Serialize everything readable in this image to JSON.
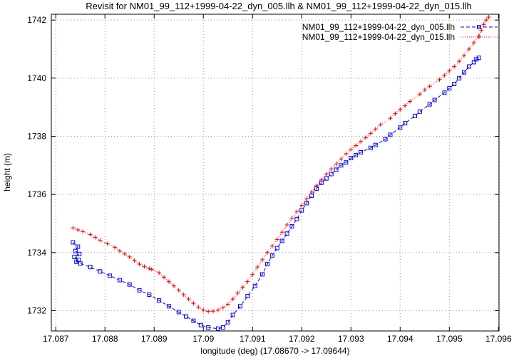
{
  "page": {
    "background": "#ffffff"
  },
  "chart_data": {
    "type": "line",
    "title": "Revisit for NM01_99_112+1999-04-22_dyn_005.llh & NM01_99_112+1999-04-22_dyn_015.llh",
    "xlabel": "longitude (deg) (17.08670 -> 17.09644)",
    "ylabel": "height (m)",
    "xlim": [
      17.08691,
      17.09601
    ],
    "ylim": [
      1731.3,
      1742.2
    ],
    "grid": true,
    "legend_position": "top-right-inside",
    "x_ticks": [
      {
        "value": 17.087,
        "label": "17.087"
      },
      {
        "value": 17.088,
        "label": "17.088"
      },
      {
        "value": 17.089,
        "label": "17.089"
      },
      {
        "value": 17.09,
        "label": "17.09"
      },
      {
        "value": 17.091,
        "label": "17.091"
      },
      {
        "value": 17.092,
        "label": "17.092"
      },
      {
        "value": 17.093,
        "label": "17.093"
      },
      {
        "value": 17.094,
        "label": "17.094"
      },
      {
        "value": 17.095,
        "label": "17.095"
      },
      {
        "value": 17.096,
        "label": "17.096"
      }
    ],
    "y_ticks": [
      {
        "value": 1732,
        "label": "1732"
      },
      {
        "value": 1734,
        "label": "1734"
      },
      {
        "value": 1736,
        "label": "1736"
      },
      {
        "value": 1738,
        "label": "1738"
      },
      {
        "value": 1740,
        "label": "1740"
      },
      {
        "value": 1742,
        "label": "1742"
      }
    ],
    "series": [
      {
        "name": "NM01_99_112+1999-04-22_dyn_005.llh",
        "color": "#0000ff",
        "marker": "open-square",
        "line": "dashed",
        "points": [
          [
            17.08735,
            1734.35
          ],
          [
            17.08745,
            1734.2
          ],
          [
            17.0874,
            1734.05
          ],
          [
            17.08748,
            1733.95
          ],
          [
            17.08738,
            1733.85
          ],
          [
            17.08746,
            1733.75
          ],
          [
            17.08742,
            1733.68
          ],
          [
            17.0875,
            1733.62
          ],
          [
            17.0877,
            1733.5
          ],
          [
            17.0879,
            1733.35
          ],
          [
            17.0881,
            1733.2
          ],
          [
            17.0883,
            1733.05
          ],
          [
            17.0885,
            1732.9
          ],
          [
            17.0887,
            1732.7
          ],
          [
            17.0889,
            1732.55
          ],
          [
            17.0891,
            1732.35
          ],
          [
            17.0893,
            1732.15
          ],
          [
            17.0895,
            1731.95
          ],
          [
            17.08965,
            1731.8
          ],
          [
            17.0898,
            1731.65
          ],
          [
            17.08995,
            1731.5
          ],
          [
            17.0901,
            1731.42
          ],
          [
            17.0903,
            1731.38
          ],
          [
            17.0904,
            1731.42
          ],
          [
            17.0905,
            1731.6
          ],
          [
            17.0906,
            1731.85
          ],
          [
            17.09075,
            1732.15
          ],
          [
            17.0909,
            1732.5
          ],
          [
            17.09105,
            1732.85
          ],
          [
            17.0912,
            1733.25
          ],
          [
            17.0913,
            1733.6
          ],
          [
            17.0914,
            1733.9
          ],
          [
            17.0915,
            1734.15
          ],
          [
            17.0916,
            1734.4
          ],
          [
            17.0917,
            1734.65
          ],
          [
            17.0918,
            1734.9
          ],
          [
            17.0919,
            1735.15
          ],
          [
            17.092,
            1735.45
          ],
          [
            17.0921,
            1735.7
          ],
          [
            17.0922,
            1735.95
          ],
          [
            17.0923,
            1736.2
          ],
          [
            17.0924,
            1736.4
          ],
          [
            17.0925,
            1736.55
          ],
          [
            17.0926,
            1736.7
          ],
          [
            17.0927,
            1736.85
          ],
          [
            17.0928,
            1737.0
          ],
          [
            17.0929,
            1737.1
          ],
          [
            17.093,
            1737.25
          ],
          [
            17.0931,
            1737.35
          ],
          [
            17.0932,
            1737.45
          ],
          [
            17.0934,
            1737.6
          ],
          [
            17.0935,
            1737.7
          ],
          [
            17.0937,
            1737.9
          ],
          [
            17.0938,
            1738.05
          ],
          [
            17.094,
            1738.3
          ],
          [
            17.0941,
            1738.45
          ],
          [
            17.0943,
            1738.7
          ],
          [
            17.0944,
            1738.85
          ],
          [
            17.0946,
            1739.1
          ],
          [
            17.0947,
            1739.25
          ],
          [
            17.0949,
            1739.5
          ],
          [
            17.095,
            1739.65
          ],
          [
            17.0951,
            1739.8
          ],
          [
            17.0952,
            1740.0
          ],
          [
            17.0953,
            1740.2
          ],
          [
            17.0954,
            1740.4
          ],
          [
            17.0955,
            1740.55
          ],
          [
            17.09555,
            1740.65
          ],
          [
            17.0956,
            1740.7
          ]
        ]
      },
      {
        "name": "NM01_99_112+1999-04-22_dyn_015.llh",
        "color": "#ff0000",
        "marker": "plus",
        "line": "dotted",
        "points": [
          [
            17.08735,
            1734.85
          ],
          [
            17.08745,
            1734.78
          ],
          [
            17.08755,
            1734.72
          ],
          [
            17.0877,
            1734.62
          ],
          [
            17.0878,
            1734.52
          ],
          [
            17.0879,
            1734.42
          ],
          [
            17.08805,
            1734.3
          ],
          [
            17.0882,
            1734.18
          ],
          [
            17.0883,
            1734.05
          ],
          [
            17.0884,
            1733.95
          ],
          [
            17.0885,
            1733.85
          ],
          [
            17.0886,
            1733.72
          ],
          [
            17.0887,
            1733.6
          ],
          [
            17.0888,
            1733.52
          ],
          [
            17.0889,
            1733.45
          ],
          [
            17.08895,
            1733.42
          ],
          [
            17.0891,
            1733.3
          ],
          [
            17.0892,
            1733.15
          ],
          [
            17.0893,
            1733.0
          ],
          [
            17.0894,
            1732.85
          ],
          [
            17.0895,
            1732.7
          ],
          [
            17.0896,
            1732.55
          ],
          [
            17.0897,
            1732.4
          ],
          [
            17.0898,
            1732.25
          ],
          [
            17.0899,
            1732.12
          ],
          [
            17.09,
            1732.02
          ],
          [
            17.0901,
            1731.97
          ],
          [
            17.0902,
            1731.98
          ],
          [
            17.0903,
            1732.02
          ],
          [
            17.0904,
            1732.1
          ],
          [
            17.0905,
            1732.22
          ],
          [
            17.0906,
            1732.4
          ],
          [
            17.0907,
            1732.6
          ],
          [
            17.0908,
            1732.8
          ],
          [
            17.0909,
            1733.0
          ],
          [
            17.091,
            1733.25
          ],
          [
            17.0911,
            1733.5
          ],
          [
            17.0912,
            1733.75
          ],
          [
            17.0913,
            1734.0
          ],
          [
            17.0914,
            1734.22
          ],
          [
            17.0915,
            1734.45
          ],
          [
            17.0916,
            1734.7
          ],
          [
            17.0917,
            1734.95
          ],
          [
            17.0918,
            1735.18
          ],
          [
            17.0919,
            1735.4
          ],
          [
            17.092,
            1735.62
          ],
          [
            17.0921,
            1735.85
          ],
          [
            17.0922,
            1736.08
          ],
          [
            17.0923,
            1736.3
          ],
          [
            17.0924,
            1736.5
          ],
          [
            17.0925,
            1736.7
          ],
          [
            17.0926,
            1736.88
          ],
          [
            17.0927,
            1737.05
          ],
          [
            17.0928,
            1737.22
          ],
          [
            17.0929,
            1737.4
          ],
          [
            17.093,
            1737.55
          ],
          [
            17.0931,
            1737.68
          ],
          [
            17.0932,
            1737.82
          ],
          [
            17.0933,
            1737.95
          ],
          [
            17.0934,
            1738.1
          ],
          [
            17.0935,
            1738.25
          ],
          [
            17.0936,
            1738.4
          ],
          [
            17.0938,
            1738.62
          ],
          [
            17.0939,
            1738.78
          ],
          [
            17.094,
            1738.92
          ],
          [
            17.0941,
            1739.05
          ],
          [
            17.0942,
            1739.2
          ],
          [
            17.0944,
            1739.45
          ],
          [
            17.0945,
            1739.6
          ],
          [
            17.0946,
            1739.72
          ],
          [
            17.0948,
            1739.95
          ],
          [
            17.0949,
            1740.1
          ],
          [
            17.095,
            1740.25
          ],
          [
            17.0951,
            1740.4
          ],
          [
            17.0952,
            1740.58
          ],
          [
            17.0953,
            1740.78
          ],
          [
            17.0954,
            1741.0
          ],
          [
            17.0955,
            1741.22
          ],
          [
            17.0956,
            1741.45
          ],
          [
            17.09565,
            1741.65
          ],
          [
            17.0957,
            1741.85
          ],
          [
            17.09575,
            1742.0
          ],
          [
            17.0958,
            1742.1
          ]
        ]
      }
    ]
  }
}
